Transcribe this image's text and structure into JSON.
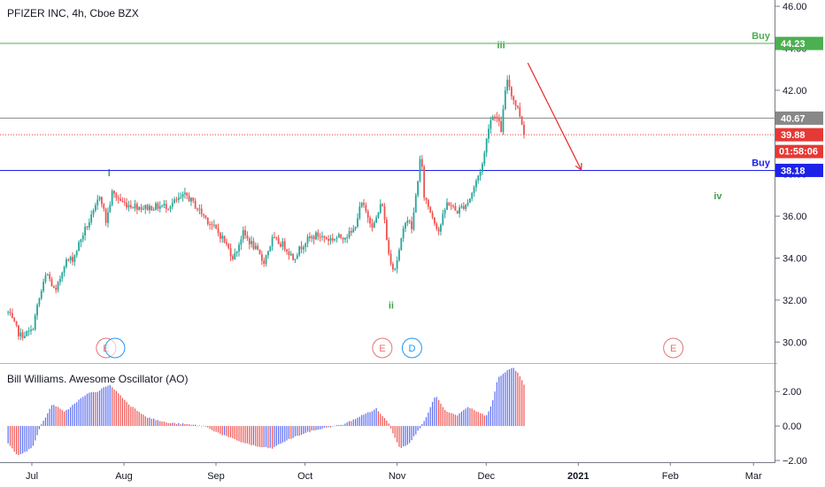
{
  "header": {
    "title": "PFIZER INC, 4h, Cboe BZX"
  },
  "colors": {
    "up": "#26a69a",
    "down": "#ef5350",
    "buy_top": "#4caf50",
    "buy_low": "#1e22e6",
    "current": "#888888",
    "last": "#e53935",
    "wave": "#43a047",
    "arrow": "#e53935",
    "ao_up": "#5b6cf0",
    "ao_down": "#ef5350",
    "event_e": "#e57373",
    "event_d": "#2196f3"
  },
  "chart_data": [
    {
      "type": "candlestick",
      "title": "PFIZER INC, 4h, Cboe BZX",
      "ylim": [
        29,
        46.3
      ],
      "y_ticks": [
        "30.00",
        "32.00",
        "34.00",
        "36.00",
        "38.00",
        "40.00",
        "42.00",
        "44.00",
        "46.00"
      ],
      "x_ticks": [
        "Jul",
        "Aug",
        "Sep",
        "Oct",
        "Nov",
        "Dec",
        "2021",
        "Feb",
        "Mar"
      ],
      "price_points": [
        [
          "Jun 23",
          31.4
        ],
        [
          "Jun 27",
          30.3
        ],
        [
          "Jul 1",
          30.5
        ],
        [
          "Jul 3",
          31.8
        ],
        [
          "Jul 6",
          33.3
        ],
        [
          "Jul 9",
          32.3
        ],
        [
          "Jul 12",
          33.8
        ],
        [
          "Jul 15",
          34.0
        ],
        [
          "Jul 18",
          35.1
        ],
        [
          "Jul 22",
          36.2
        ],
        [
          "Jul 24",
          37.1
        ],
        [
          "Jul 26",
          35.7
        ],
        [
          "Jul 28",
          37.1
        ],
        [
          "Aug 1",
          36.6
        ],
        [
          "Aug 8",
          36.4
        ],
        [
          "Aug 16",
          36.5
        ],
        [
          "Aug 22",
          37.0
        ],
        [
          "Aug 28",
          36.0
        ],
        [
          "Sep 3",
          35.0
        ],
        [
          "Sep 7",
          34.0
        ],
        [
          "Sep 10",
          35.2
        ],
        [
          "Sep 14",
          34.5
        ],
        [
          "Sep 17",
          33.8
        ],
        [
          "Sep 20",
          34.9
        ],
        [
          "Sep 24",
          34.6
        ],
        [
          "Sep 27",
          34.0
        ],
        [
          "Oct 1",
          34.8
        ],
        [
          "Oct 5",
          35.1
        ],
        [
          "Oct 9",
          34.9
        ],
        [
          "Oct 13",
          35.0
        ],
        [
          "Oct 17",
          35.2
        ],
        [
          "Oct 20",
          36.6
        ],
        [
          "Oct 24",
          35.5
        ],
        [
          "Oct 27",
          36.7
        ],
        [
          "Oct 29",
          34.3
        ],
        [
          "Oct 31",
          33.4
        ],
        [
          "Nov 2",
          34.5
        ],
        [
          "Nov 4",
          36.0
        ],
        [
          "Nov 6",
          35.4
        ],
        [
          "Nov 9",
          39.0
        ],
        [
          "Nov 10",
          37.0
        ],
        [
          "Nov 12",
          36.3
        ],
        [
          "Nov 15",
          35.3
        ],
        [
          "Nov 18",
          36.7
        ],
        [
          "Nov 21",
          36.2
        ],
        [
          "Nov 25",
          36.7
        ],
        [
          "Nov 27",
          37.4
        ],
        [
          "Nov 30",
          38.6
        ],
        [
          "Dec 2",
          40.5
        ],
        [
          "Dec 4",
          40.9
        ],
        [
          "Dec 6",
          40.1
        ],
        [
          "Dec 8",
          42.6
        ],
        [
          "Dec 10",
          41.6
        ],
        [
          "Dec 12",
          41.0
        ],
        [
          "Dec 14",
          39.88
        ]
      ],
      "levels": [
        {
          "name": "Buy",
          "value": 44.23,
          "label": "44.23",
          "color": "#4caf50"
        },
        {
          "name": "current",
          "value": 40.67,
          "label": "40.67",
          "color": "#888888"
        },
        {
          "name": "last",
          "value": 39.88,
          "label": "39.88",
          "color": "#e53935"
        },
        {
          "name": "Buy",
          "value": 38.18,
          "label": "38.18",
          "color": "#1e22e6"
        }
      ],
      "countdown": "01:58:06",
      "wave_labels": [
        {
          "text": "i",
          "date": "Jul 27",
          "value": 37.9
        },
        {
          "text": "ii",
          "date": "Oct 30",
          "value": 31.6
        },
        {
          "text": "iii",
          "date": "Dec 6",
          "value": 44.0
        },
        {
          "text": "iv",
          "date": "Feb 17",
          "value": 36.8
        }
      ],
      "arrow": {
        "from": [
          "Dec 15",
          43.3
        ],
        "to": [
          "Jan 2",
          38.2
        ]
      },
      "events": [
        {
          "label": "E",
          "date": "Jul 26",
          "kind": "E"
        },
        {
          "label": "",
          "date": "Jul 29",
          "kind": "D"
        },
        {
          "label": "E",
          "date": "Oct 27",
          "kind": "E"
        },
        {
          "label": "D",
          "date": "Nov 6",
          "kind": "D"
        },
        {
          "label": "E",
          "date": "Feb 2",
          "kind": "E"
        }
      ]
    },
    {
      "type": "bar",
      "title": "Bill Williams. Awesome Oscillator (AO)",
      "ylim": [
        -2.1,
        3.6
      ],
      "y_ticks": [
        "−2.00",
        "0.00",
        "2.00"
      ],
      "points": [
        [
          "Jun 23",
          -1.0
        ],
        [
          "Jun 26",
          -1.7
        ],
        [
          "Jul 1",
          -1.3
        ],
        [
          "Jul 4",
          0.0
        ],
        [
          "Jul 8",
          1.3
        ],
        [
          "Jul 12",
          0.8
        ],
        [
          "Jul 16",
          1.4
        ],
        [
          "Jul 20",
          1.9
        ],
        [
          "Jul 23",
          2.0
        ],
        [
          "Jul 27",
          2.4
        ],
        [
          "Jul 29",
          2.1
        ],
        [
          "Aug 3",
          1.2
        ],
        [
          "Aug 9",
          0.5
        ],
        [
          "Aug 15",
          0.2
        ],
        [
          "Aug 22",
          0.1
        ],
        [
          "Aug 28",
          0.0
        ],
        [
          "Sep 3",
          -0.5
        ],
        [
          "Sep 9",
          -0.9
        ],
        [
          "Sep 15",
          -1.2
        ],
        [
          "Sep 20",
          -1.3
        ],
        [
          "Sep 24",
          -0.9
        ],
        [
          "Sep 28",
          -0.6
        ],
        [
          "Oct 3",
          -0.3
        ],
        [
          "Oct 8",
          -0.1
        ],
        [
          "Oct 14",
          0.1
        ],
        [
          "Oct 20",
          0.6
        ],
        [
          "Oct 25",
          1.0
        ],
        [
          "Oct 29",
          0.2
        ],
        [
          "Nov 2",
          -1.3
        ],
        [
          "Nov 5",
          -1.0
        ],
        [
          "Nov 8",
          -0.3
        ],
        [
          "Nov 11",
          0.6
        ],
        [
          "Nov 14",
          1.8
        ],
        [
          "Nov 17",
          0.9
        ],
        [
          "Nov 21",
          0.6
        ],
        [
          "Nov 25",
          1.1
        ],
        [
          "Nov 28",
          0.8
        ],
        [
          "Dec 1",
          0.6
        ],
        [
          "Dec 3",
          1.3
        ],
        [
          "Dec 5",
          2.8
        ],
        [
          "Dec 8",
          3.2
        ],
        [
          "Dec 10",
          3.4
        ],
        [
          "Dec 12",
          3.0
        ],
        [
          "Dec 14",
          2.3
        ]
      ]
    }
  ]
}
